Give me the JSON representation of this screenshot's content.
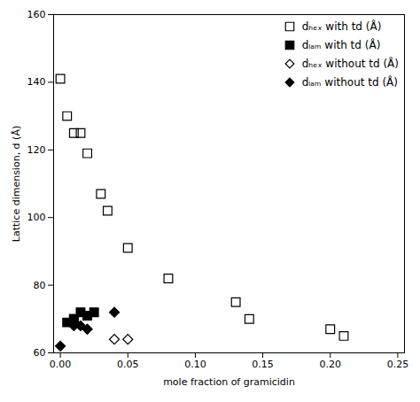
{
  "chart_data": {
    "type": "scatter",
    "xlabel": "mole fraction of gramicidin",
    "ylabel": "Lattice dimension, d (Å)",
    "xlim": [
      -0.005,
      0.255
    ],
    "ylim": [
      60,
      160
    ],
    "xticks": [
      {
        "value": 0.0,
        "label": "0.00"
      },
      {
        "value": 0.05,
        "label": "0.05"
      },
      {
        "value": 0.1,
        "label": "0.10"
      },
      {
        "value": 0.15,
        "label": "0.15"
      },
      {
        "value": 0.2,
        "label": "0.20"
      },
      {
        "value": 0.25,
        "label": "0.25"
      }
    ],
    "yticks": [
      60,
      80,
      100,
      120,
      140,
      160
    ],
    "grid": false,
    "legend": "upper right",
    "series": [
      {
        "name": "dₕₑₓ with td (Å)",
        "color": "#000000",
        "marker": "open_square",
        "x": [
          0.0,
          0.005,
          0.01,
          0.015,
          0.02,
          0.03,
          0.035,
          0.05,
          0.08,
          0.13,
          0.14,
          0.2,
          0.21
        ],
        "values": [
          141,
          130,
          125,
          125,
          119,
          107,
          102,
          91,
          82,
          75,
          70,
          67,
          65
        ]
      },
      {
        "name": "dₗₐₘ with td (Å)",
        "color": "#000000",
        "marker": "filled_square",
        "x": [
          0.005,
          0.01,
          0.01,
          0.015,
          0.02,
          0.025
        ],
        "values": [
          69,
          70,
          70,
          72,
          71,
          72
        ]
      },
      {
        "name": "dₕₑₓ without td (Å)",
        "color": "#000000",
        "marker": "open_diamond",
        "x": [
          0.04,
          0.05
        ],
        "values": [
          64,
          64
        ]
      },
      {
        "name": "dₗₐₘ without td (Å)",
        "color": "#000000",
        "marker": "filled_diamond",
        "x": [
          0.0,
          0.01,
          0.015,
          0.02,
          0.04
        ],
        "values": [
          62,
          68,
          68,
          67,
          72
        ]
      }
    ]
  }
}
